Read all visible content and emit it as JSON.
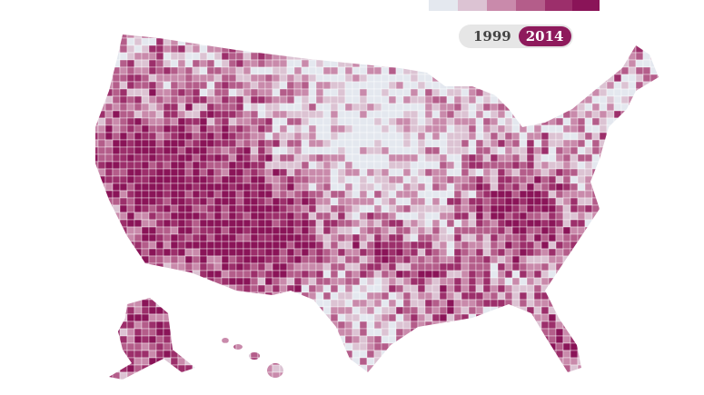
{
  "toggle": {
    "options": [
      "1999",
      "2014"
    ],
    "selected_index": 1
  }
}
